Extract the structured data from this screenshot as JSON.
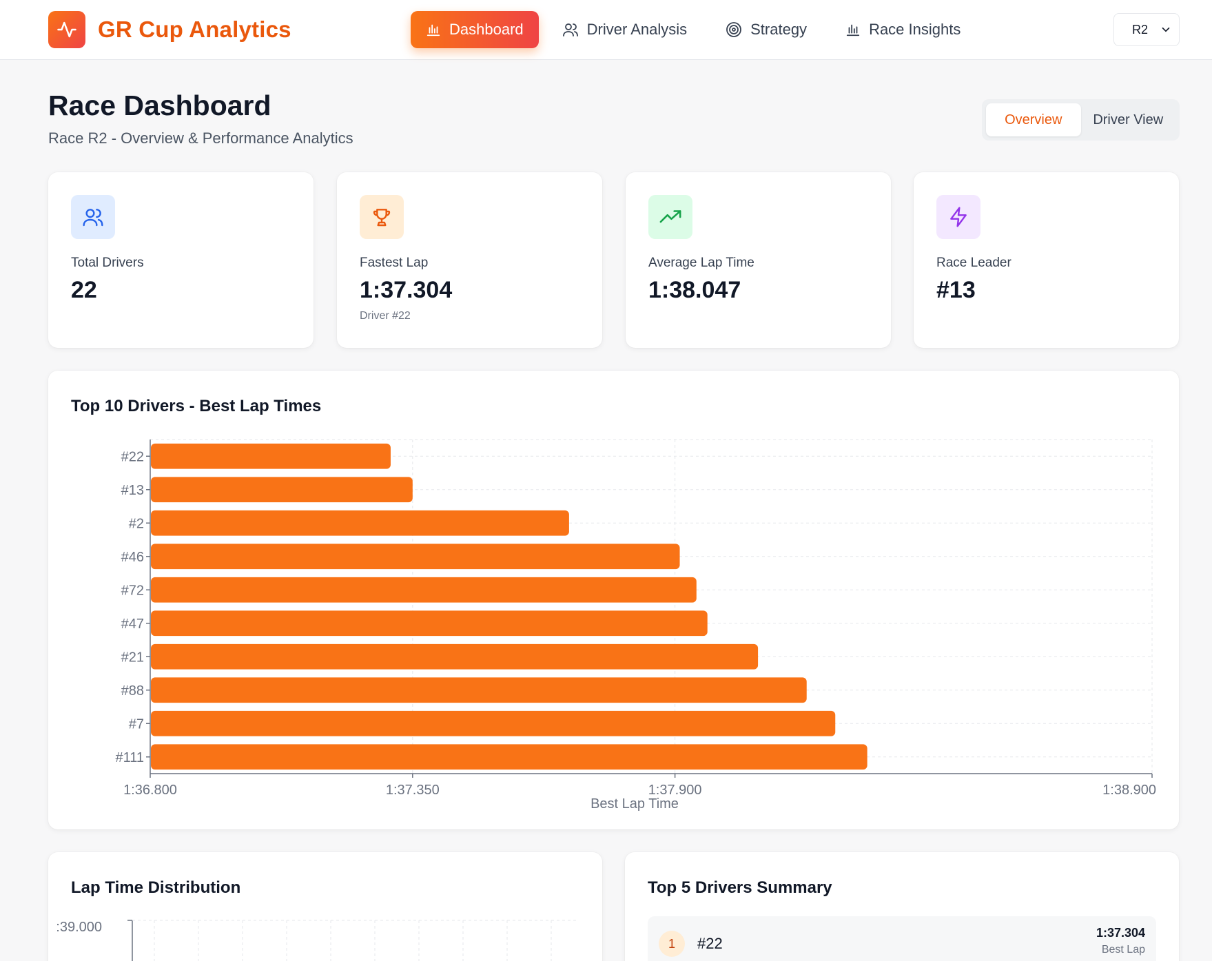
{
  "header": {
    "brand_title": "GR Cup Analytics",
    "nav": [
      {
        "label": "Dashboard",
        "icon": "bar-chart-icon",
        "active": true
      },
      {
        "label": "Driver Analysis",
        "icon": "users-icon",
        "active": false
      },
      {
        "label": "Strategy",
        "icon": "target-icon",
        "active": false
      },
      {
        "label": "Race Insights",
        "icon": "bar-chart-icon",
        "active": false
      }
    ],
    "race_select": "R2"
  },
  "page": {
    "title": "Race Dashboard",
    "subtitle": "Race R2 - Overview & Performance Analytics",
    "view_tabs": [
      {
        "label": "Overview",
        "active": true
      },
      {
        "label": "Driver View",
        "active": false
      }
    ]
  },
  "stats": [
    {
      "label": "Total Drivers",
      "value": "22",
      "sub": "",
      "icon": "users-icon",
      "icon_bg": "#e0ecff",
      "icon_color": "#2563eb"
    },
    {
      "label": "Fastest Lap",
      "value": "1:37.304",
      "sub": "Driver #22",
      "icon": "trophy-icon",
      "icon_bg": "#ffedd5",
      "icon_color": "#ea580c"
    },
    {
      "label": "Average Lap Time",
      "value": "1:38.047",
      "sub": "",
      "icon": "trending-up-icon",
      "icon_bg": "#dcfce7",
      "icon_color": "#16a34a"
    },
    {
      "label": "Race Leader",
      "value": "#13",
      "sub": "",
      "icon": "lightning-icon",
      "icon_bg": "#f3e8ff",
      "icon_color": "#9333ea"
    }
  ],
  "chart_card": {
    "title": "Top 10 Drivers - Best Lap Times"
  },
  "chart_data": {
    "type": "bar",
    "orientation": "horizontal",
    "title": "Top 10 Drivers - Best Lap Times",
    "categories": [
      "#22",
      "#13",
      "#2",
      "#46",
      "#72",
      "#47",
      "#21",
      "#88",
      "#7",
      "#111"
    ],
    "values": [
      97.304,
      97.35,
      97.678,
      97.91,
      97.945,
      97.968,
      98.074,
      98.176,
      98.236,
      98.303
    ],
    "xlabel": "Best Lap Time",
    "ylabel": "",
    "xlim": [
      96.8,
      98.9
    ],
    "xticks": [
      96.8,
      97.35,
      97.9,
      98.9
    ],
    "xtick_labels": [
      "1:36.800",
      "1:37.350",
      "1:37.900",
      "1:38.900"
    ],
    "bar_color": "#f97316",
    "grid": true
  },
  "distribution_card": {
    "title": "Lap Time Distribution",
    "y_tick_label": ":39.000"
  },
  "summary_card": {
    "title": "Top 5 Drivers Summary",
    "rows": [
      {
        "rank": "1",
        "driver": "#22",
        "time": "1:37.304",
        "label": "Best Lap"
      }
    ]
  }
}
